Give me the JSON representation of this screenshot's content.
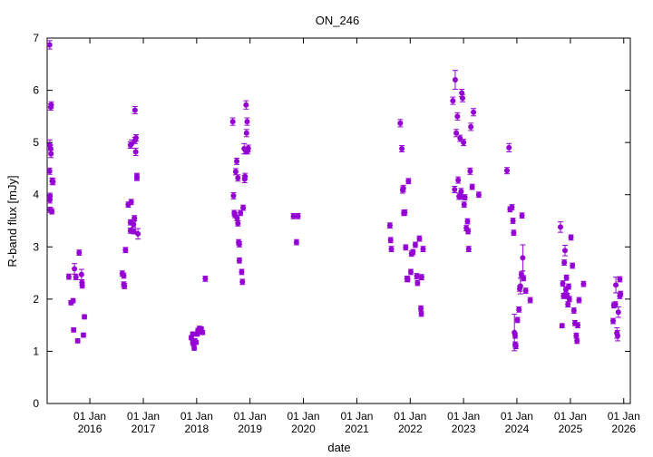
{
  "chart_data": {
    "type": "scatter",
    "title": "ON_246",
    "xlabel": "date",
    "ylabel": "R-band flux [mJy]",
    "x_type": "date",
    "xlim": [
      "2015-03-15",
      "2026-02-15"
    ],
    "ylim": [
      0,
      7
    ],
    "grid": false,
    "legend": "none",
    "yticks": [
      0,
      1,
      2,
      3,
      4,
      5,
      6,
      7
    ],
    "xticks": [
      {
        "date": "2016-01-01",
        "line1": "01 Jan",
        "line2": "2016"
      },
      {
        "date": "2017-01-01",
        "line1": "01 Jan",
        "line2": "2017"
      },
      {
        "date": "2018-01-01",
        "line1": "01 Jan",
        "line2": "2018"
      },
      {
        "date": "2019-01-01",
        "line1": "01 Jan",
        "line2": "2019"
      },
      {
        "date": "2020-01-01",
        "line1": "01 Jan",
        "line2": "2020"
      },
      {
        "date": "2021-01-01",
        "line1": "01 Jan",
        "line2": "2021"
      },
      {
        "date": "2022-01-01",
        "line1": "01 Jan",
        "line2": "2022"
      },
      {
        "date": "2023-01-01",
        "line1": "01 Jan",
        "line2": "2023"
      },
      {
        "date": "2024-01-01",
        "line1": "01 Jan",
        "line2": "2024"
      },
      {
        "date": "2025-01-01",
        "line1": "01 Jan",
        "line2": "2025"
      },
      {
        "date": "2026-01-01",
        "line1": "01 Jan",
        "line2": "2026"
      }
    ],
    "colors": {
      "marker": "#9400d3",
      "axis": "#000000"
    },
    "series": [
      {
        "points": [
          [
            "2015-04-01",
            6.87,
            0.08
          ],
          [
            "2015-04-08",
            5.68,
            0.06
          ],
          [
            "2015-04-12",
            5.72,
            0.06
          ],
          [
            "2015-04-02",
            4.95,
            0.1
          ],
          [
            "2015-04-08",
            4.88,
            0.07
          ],
          [
            "2015-04-10",
            4.78,
            0.07
          ],
          [
            "2015-04-01",
            4.45,
            0.06
          ],
          [
            "2015-04-18",
            4.26,
            0.06
          ],
          [
            "2015-04-24",
            4.25,
            0.06
          ],
          [
            "2015-04-03",
            3.97,
            0.06
          ],
          [
            "2015-04-03",
            3.9,
            0.06
          ],
          [
            "2015-04-05",
            3.71,
            0.05
          ],
          [
            "2015-04-16",
            3.68,
            0.05
          ],
          [
            "2015-08-10",
            2.43,
            0.05
          ],
          [
            "2015-08-25",
            1.93,
            0.04
          ],
          [
            "2015-09-08",
            1.97,
            0.04
          ],
          [
            "2015-09-18",
            2.58,
            0.1
          ],
          [
            "2015-09-12",
            1.41,
            0.04
          ],
          [
            "2015-09-28",
            2.42,
            0.05
          ],
          [
            "2015-10-10",
            1.2,
            0.04
          ],
          [
            "2015-10-20",
            2.89,
            0.05
          ],
          [
            "2015-11-05",
            2.47,
            0.1
          ],
          [
            "2015-11-08",
            2.32,
            0.05
          ],
          [
            "2015-11-10",
            2.26,
            0.05
          ],
          [
            "2015-11-18",
            1.31,
            0.04
          ],
          [
            "2015-11-25",
            1.66,
            0.04
          ],
          [
            "2016-08-10",
            2.49,
            0.05
          ],
          [
            "2016-08-20",
            2.28,
            0.05
          ],
          [
            "2016-08-25",
            2.25,
            0.05
          ],
          [
            "2016-08-20",
            2.45,
            0.05
          ],
          [
            "2016-09-01",
            2.94,
            0.05
          ],
          [
            "2016-09-20",
            3.81,
            0.05
          ],
          [
            "2016-10-05",
            3.47,
            0.05
          ],
          [
            "2016-10-05",
            3.31,
            0.05
          ],
          [
            "2016-10-10",
            3.86,
            0.05
          ],
          [
            "2016-10-05",
            4.95,
            0.06
          ],
          [
            "2016-10-12",
            4.97,
            0.08
          ],
          [
            "2016-10-26",
            3.43,
            0.05
          ],
          [
            "2016-10-28",
            3.3,
            0.05
          ],
          [
            "2016-11-01",
            3.55,
            0.05
          ],
          [
            "2016-11-05",
            5.62,
            0.07
          ],
          [
            "2016-11-05",
            5.04,
            0.06
          ],
          [
            "2016-11-12",
            5.09,
            0.06
          ],
          [
            "2016-11-10",
            4.82,
            0.07
          ],
          [
            "2016-11-18",
            4.35,
            0.06
          ],
          [
            "2016-11-25",
            3.25,
            0.1
          ],
          [
            "2016-11-18",
            4.33,
            0.06
          ],
          [
            "2017-11-25",
            1.26,
            0.04
          ],
          [
            "2017-12-05",
            1.17,
            0.04
          ],
          [
            "2017-12-05",
            1.33,
            0.04
          ],
          [
            "2017-12-10",
            1.14,
            0.04
          ],
          [
            "2017-12-15",
            1.06,
            0.04
          ],
          [
            "2017-12-20",
            1.2,
            0.04
          ],
          [
            "2017-12-28",
            1.17,
            0.04
          ],
          [
            "2018-01-05",
            1.33,
            0.04
          ],
          [
            "2018-01-10",
            1.4,
            0.04
          ],
          [
            "2018-01-15",
            1.37,
            0.04
          ],
          [
            "2018-01-20",
            1.44,
            0.04
          ],
          [
            "2018-01-25",
            1.38,
            0.04
          ],
          [
            "2018-02-01",
            1.43,
            0.04
          ],
          [
            "2018-02-10",
            1.36,
            0.04
          ],
          [
            "2018-03-01",
            2.39,
            0.05
          ],
          [
            "2018-09-05",
            5.4,
            0.07
          ],
          [
            "2018-09-10",
            3.98,
            0.06
          ],
          [
            "2018-09-15",
            3.65,
            0.05
          ],
          [
            "2018-09-20",
            3.61,
            0.05
          ],
          [
            "2018-09-25",
            4.44,
            0.06
          ],
          [
            "2018-10-02",
            4.64,
            0.06
          ],
          [
            "2018-10-05",
            3.55,
            0.05
          ],
          [
            "2018-10-10",
            3.45,
            0.05
          ],
          [
            "2018-10-10",
            4.32,
            0.06
          ],
          [
            "2018-10-15",
            3.09,
            0.05
          ],
          [
            "2018-10-20",
            3.05,
            0.05
          ],
          [
            "2018-10-20",
            2.74,
            0.05
          ],
          [
            "2018-10-28",
            3.65,
            0.05
          ],
          [
            "2018-11-05",
            2.52,
            0.05
          ],
          [
            "2018-11-10",
            2.33,
            0.05
          ],
          [
            "2018-11-15",
            3.75,
            0.05
          ],
          [
            "2018-11-22",
            4.88,
            0.1
          ],
          [
            "2018-11-25",
            4.3,
            0.07
          ],
          [
            "2018-11-28",
            4.35,
            0.06
          ],
          [
            "2018-12-02",
            4.85,
            0.06
          ],
          [
            "2018-12-05",
            5.72,
            0.08
          ],
          [
            "2018-12-08",
            5.18,
            0.07
          ],
          [
            "2018-12-12",
            5.4,
            0.07
          ],
          [
            "2018-12-15",
            4.84,
            0.06
          ],
          [
            "2018-12-20",
            4.89,
            0.06
          ],
          [
            "2019-10-25",
            3.59,
            0.05
          ],
          [
            "2019-11-15",
            3.09,
            0.05
          ],
          [
            "2019-11-25",
            3.59,
            0.05
          ],
          [
            "2021-08-15",
            3.41,
            0.05
          ],
          [
            "2021-08-20",
            3.13,
            0.05
          ],
          [
            "2021-08-25",
            2.96,
            0.05
          ],
          [
            "2021-10-25",
            5.37,
            0.07
          ],
          [
            "2021-11-05",
            4.88,
            0.06
          ],
          [
            "2021-11-10",
            4.09,
            0.06
          ],
          [
            "2021-11-15",
            4.12,
            0.06
          ],
          [
            "2021-11-18",
            3.65,
            0.05
          ],
          [
            "2021-11-25",
            3.66,
            0.05
          ],
          [
            "2021-12-01",
            2.99,
            0.05
          ],
          [
            "2021-12-10",
            2.39,
            0.05
          ],
          [
            "2021-12-15",
            2.38,
            0.05
          ],
          [
            "2021-12-20",
            4.26,
            0.05
          ],
          [
            "2022-01-05",
            2.52,
            0.05
          ],
          [
            "2022-01-10",
            2.87,
            0.05
          ],
          [
            "2022-01-20",
            2.9,
            0.05
          ],
          [
            "2022-02-05",
            3.04,
            0.05
          ],
          [
            "2022-02-15",
            2.44,
            0.05
          ],
          [
            "2022-02-20",
            2.31,
            0.05
          ],
          [
            "2022-03-05",
            3.16,
            0.05
          ],
          [
            "2022-03-15",
            1.82,
            0.05
          ],
          [
            "2022-03-18",
            1.72,
            0.05
          ],
          [
            "2022-03-20",
            2.42,
            0.05
          ],
          [
            "2022-03-30",
            2.96,
            0.05
          ],
          [
            "2022-10-20",
            5.8,
            0.07
          ],
          [
            "2022-11-01",
            4.1,
            0.06
          ],
          [
            "2022-11-05",
            6.2,
            0.18
          ],
          [
            "2022-11-12",
            5.18,
            0.07
          ],
          [
            "2022-11-20",
            5.5,
            0.07
          ],
          [
            "2022-11-25",
            4.28,
            0.06
          ],
          [
            "2022-12-01",
            3.97,
            0.06
          ],
          [
            "2022-12-08",
            5.08,
            0.06
          ],
          [
            "2022-12-12",
            3.97,
            0.06
          ],
          [
            "2022-12-15",
            4.06,
            0.06
          ],
          [
            "2022-12-20",
            5.95,
            0.07
          ],
          [
            "2022-12-25",
            5.85,
            0.07
          ],
          [
            "2023-01-01",
            5.0,
            0.06
          ],
          [
            "2023-01-05",
            3.81,
            0.05
          ],
          [
            "2023-01-10",
            3.95,
            0.05
          ],
          [
            "2023-01-20",
            3.36,
            0.05
          ],
          [
            "2023-01-28",
            3.49,
            0.05
          ],
          [
            "2023-02-01",
            3.3,
            0.05
          ],
          [
            "2023-02-05",
            2.96,
            0.05
          ],
          [
            "2023-02-15",
            4.45,
            0.06
          ],
          [
            "2023-02-20",
            5.3,
            0.07
          ],
          [
            "2023-03-01",
            4.15,
            0.05
          ],
          [
            "2023-03-10",
            5.58,
            0.07
          ],
          [
            "2023-04-15",
            4.0,
            0.05
          ],
          [
            "2023-10-25",
            4.46,
            0.06
          ],
          [
            "2023-11-08",
            4.9,
            0.08
          ],
          [
            "2023-11-15",
            3.72,
            0.05
          ],
          [
            "2023-11-28",
            3.76,
            0.05
          ],
          [
            "2023-12-05",
            3.5,
            0.05
          ],
          [
            "2023-12-10",
            3.27,
            0.05
          ],
          [
            "2023-12-15",
            1.36,
            0.35
          ],
          [
            "2023-12-20",
            1.13,
            0.05
          ],
          [
            "2023-12-25",
            1.1,
            0.05
          ],
          [
            "2023-12-20",
            1.3,
            0.05
          ],
          [
            "2024-01-05",
            1.6,
            0.05
          ],
          [
            "2024-01-15",
            1.8,
            0.05
          ],
          [
            "2024-01-20",
            2.2,
            0.05
          ],
          [
            "2024-01-25",
            2.25,
            0.15
          ],
          [
            "2024-02-01",
            2.47,
            0.05
          ],
          [
            "2024-02-05",
            3.6,
            0.05
          ],
          [
            "2024-02-10",
            2.79,
            0.25
          ],
          [
            "2024-02-15",
            2.4,
            0.05
          ],
          [
            "2024-03-01",
            2.16,
            0.05
          ],
          [
            "2024-04-01",
            1.98,
            0.05
          ],
          [
            "2024-10-25",
            3.38,
            0.1
          ],
          [
            "2024-11-05",
            1.49,
            0.04
          ],
          [
            "2024-11-10",
            2.3,
            0.05
          ],
          [
            "2024-11-15",
            2.06,
            0.05
          ],
          [
            "2024-11-20",
            2.7,
            0.05
          ],
          [
            "2024-11-25",
            2.93,
            0.1
          ],
          [
            "2024-12-01",
            2.18,
            0.05
          ],
          [
            "2024-12-05",
            2.41,
            0.05
          ],
          [
            "2024-12-10",
            2.06,
            0.05
          ],
          [
            "2024-12-15",
            1.9,
            0.05
          ],
          [
            "2024-12-20",
            2.24,
            0.05
          ],
          [
            "2024-12-25",
            2.0,
            0.05
          ],
          [
            "2025-01-05",
            3.18,
            0.05
          ],
          [
            "2025-01-15",
            2.64,
            0.05
          ],
          [
            "2025-01-25",
            1.78,
            0.05
          ],
          [
            "2025-02-01",
            1.54,
            0.05
          ],
          [
            "2025-02-10",
            1.3,
            0.05
          ],
          [
            "2025-02-15",
            1.2,
            0.05
          ],
          [
            "2025-02-20",
            1.5,
            0.05
          ],
          [
            "2025-03-01",
            1.98,
            0.05
          ],
          [
            "2025-04-01",
            2.29,
            0.05
          ],
          [
            "2025-10-20",
            1.58,
            0.05
          ],
          [
            "2025-10-25",
            1.88,
            0.05
          ],
          [
            "2025-11-05",
            1.9,
            0.05
          ],
          [
            "2025-11-08",
            2.27,
            0.15
          ],
          [
            "2025-11-15",
            1.35,
            0.1
          ],
          [
            "2025-11-20",
            1.3,
            0.1
          ],
          [
            "2025-11-25",
            1.75,
            0.1
          ],
          [
            "2025-12-05",
            2.06,
            0.05
          ],
          [
            "2025-12-05",
            2.38,
            0.05
          ],
          [
            "2025-12-10",
            2.1,
            0.05
          ]
        ]
      }
    ]
  }
}
